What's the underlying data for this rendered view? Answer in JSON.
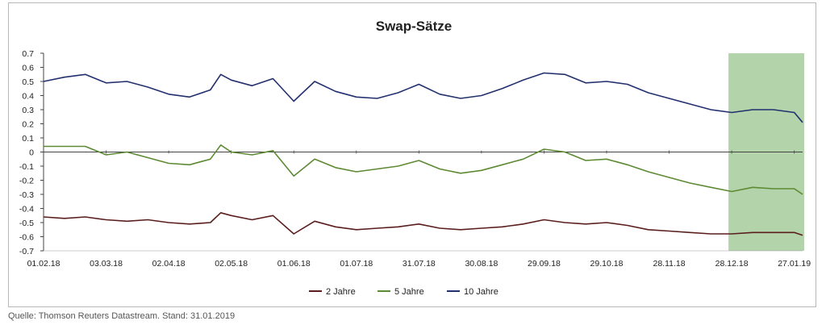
{
  "colors": {
    "two_year": "#5a1e1e",
    "five_year": "#5d8a33",
    "ten_year": "#23306e",
    "highlight": "#8bbb7c",
    "axis": "#444444"
  },
  "source_note": "Quelle: Thomson Reuters Datastream. Stand: 31.01.2019",
  "chart_data": {
    "type": "line",
    "title": "Swap-Sätze",
    "xlabel": "",
    "ylabel": "",
    "ylim": [
      -0.7,
      0.7
    ],
    "y_ticks": [
      "0.7",
      "0.6",
      "0.5",
      "0.4",
      "0.3",
      "0.2",
      "0.1",
      "0",
      "-0.1",
      "-0.2",
      "-0.3",
      "-0.4",
      "-0.5",
      "-0.6",
      "-0.7"
    ],
    "x_ticks": [
      "01.02.18",
      "03.03.18",
      "02.04.18",
      "02.05.18",
      "01.06.18",
      "01.07.18",
      "31.07.18",
      "30.08.18",
      "29.09.18",
      "29.10.18",
      "28.11.18",
      "28.12.18",
      "27.01.19"
    ],
    "grid": false,
    "legend_position": "bottom",
    "highlight_range": [
      "28.12.18",
      "31.01.19"
    ],
    "series": [
      {
        "name": "2 Jahre",
        "points": [
          [
            "01.02.18",
            -0.46
          ],
          [
            "11.02.18",
            -0.47
          ],
          [
            "21.02.18",
            -0.46
          ],
          [
            "03.03.18",
            -0.48
          ],
          [
            "13.03.18",
            -0.49
          ],
          [
            "23.03.18",
            -0.48
          ],
          [
            "02.04.18",
            -0.5
          ],
          [
            "12.04.18",
            -0.51
          ],
          [
            "22.04.18",
            -0.5
          ],
          [
            "27.04.18",
            -0.43
          ],
          [
            "02.05.18",
            -0.45
          ],
          [
            "12.05.18",
            -0.48
          ],
          [
            "22.05.18",
            -0.45
          ],
          [
            "01.06.18",
            -0.58
          ],
          [
            "11.06.18",
            -0.49
          ],
          [
            "21.06.18",
            -0.53
          ],
          [
            "01.07.18",
            -0.55
          ],
          [
            "11.07.18",
            -0.54
          ],
          [
            "21.07.18",
            -0.53
          ],
          [
            "31.07.18",
            -0.51
          ],
          [
            "10.08.18",
            -0.54
          ],
          [
            "20.08.18",
            -0.55
          ],
          [
            "30.08.18",
            -0.54
          ],
          [
            "09.09.18",
            -0.53
          ],
          [
            "19.09.18",
            -0.51
          ],
          [
            "29.09.18",
            -0.48
          ],
          [
            "09.10.18",
            -0.5
          ],
          [
            "19.10.18",
            -0.51
          ],
          [
            "29.10.18",
            -0.5
          ],
          [
            "08.11.18",
            -0.52
          ],
          [
            "18.11.18",
            -0.55
          ],
          [
            "28.11.18",
            -0.56
          ],
          [
            "08.12.18",
            -0.57
          ],
          [
            "18.12.18",
            -0.58
          ],
          [
            "28.12.18",
            -0.58
          ],
          [
            "07.01.19",
            -0.57
          ],
          [
            "17.01.19",
            -0.57
          ],
          [
            "27.01.19",
            -0.57
          ],
          [
            "31.01.19",
            -0.59
          ]
        ]
      },
      {
        "name": "5 Jahre",
        "points": [
          [
            "01.02.18",
            0.04
          ],
          [
            "11.02.18",
            0.04
          ],
          [
            "21.02.18",
            0.04
          ],
          [
            "03.03.18",
            -0.02
          ],
          [
            "13.03.18",
            0.0
          ],
          [
            "23.03.18",
            -0.04
          ],
          [
            "02.04.18",
            -0.08
          ],
          [
            "12.04.18",
            -0.09
          ],
          [
            "22.04.18",
            -0.05
          ],
          [
            "27.04.18",
            0.05
          ],
          [
            "02.05.18",
            0.0
          ],
          [
            "12.05.18",
            -0.02
          ],
          [
            "22.05.18",
            0.01
          ],
          [
            "01.06.18",
            -0.17
          ],
          [
            "11.06.18",
            -0.05
          ],
          [
            "21.06.18",
            -0.11
          ],
          [
            "01.07.18",
            -0.14
          ],
          [
            "11.07.18",
            -0.12
          ],
          [
            "21.07.18",
            -0.1
          ],
          [
            "31.07.18",
            -0.06
          ],
          [
            "10.08.18",
            -0.12
          ],
          [
            "20.08.18",
            -0.15
          ],
          [
            "30.08.18",
            -0.13
          ],
          [
            "09.09.18",
            -0.09
          ],
          [
            "19.09.18",
            -0.05
          ],
          [
            "29.09.18",
            0.02
          ],
          [
            "09.10.18",
            0.0
          ],
          [
            "19.10.18",
            -0.06
          ],
          [
            "29.10.18",
            -0.05
          ],
          [
            "08.11.18",
            -0.09
          ],
          [
            "18.11.18",
            -0.14
          ],
          [
            "28.11.18",
            -0.18
          ],
          [
            "08.12.18",
            -0.22
          ],
          [
            "18.12.18",
            -0.25
          ],
          [
            "28.12.18",
            -0.28
          ],
          [
            "07.01.19",
            -0.25
          ],
          [
            "17.01.19",
            -0.26
          ],
          [
            "27.01.19",
            -0.26
          ],
          [
            "31.01.19",
            -0.3
          ]
        ]
      },
      {
        "name": "10 Jahre",
        "points": [
          [
            "01.02.18",
            0.5
          ],
          [
            "11.02.18",
            0.53
          ],
          [
            "21.02.18",
            0.55
          ],
          [
            "03.03.18",
            0.49
          ],
          [
            "13.03.18",
            0.5
          ],
          [
            "23.03.18",
            0.46
          ],
          [
            "02.04.18",
            0.41
          ],
          [
            "12.04.18",
            0.39
          ],
          [
            "22.04.18",
            0.44
          ],
          [
            "27.04.18",
            0.55
          ],
          [
            "02.05.18",
            0.51
          ],
          [
            "12.05.18",
            0.47
          ],
          [
            "22.05.18",
            0.52
          ],
          [
            "01.06.18",
            0.36
          ],
          [
            "11.06.18",
            0.5
          ],
          [
            "21.06.18",
            0.43
          ],
          [
            "01.07.18",
            0.39
          ],
          [
            "11.07.18",
            0.38
          ],
          [
            "21.07.18",
            0.42
          ],
          [
            "31.07.18",
            0.48
          ],
          [
            "10.08.18",
            0.41
          ],
          [
            "20.08.18",
            0.38
          ],
          [
            "30.08.18",
            0.4
          ],
          [
            "09.09.18",
            0.45
          ],
          [
            "19.09.18",
            0.51
          ],
          [
            "29.09.18",
            0.56
          ],
          [
            "09.10.18",
            0.55
          ],
          [
            "19.10.18",
            0.49
          ],
          [
            "29.10.18",
            0.5
          ],
          [
            "08.11.18",
            0.48
          ],
          [
            "18.11.18",
            0.42
          ],
          [
            "28.11.18",
            0.38
          ],
          [
            "08.12.18",
            0.34
          ],
          [
            "18.12.18",
            0.3
          ],
          [
            "28.12.18",
            0.28
          ],
          [
            "07.01.19",
            0.3
          ],
          [
            "17.01.19",
            0.3
          ],
          [
            "27.01.19",
            0.28
          ],
          [
            "31.01.19",
            0.21
          ]
        ]
      }
    ]
  }
}
